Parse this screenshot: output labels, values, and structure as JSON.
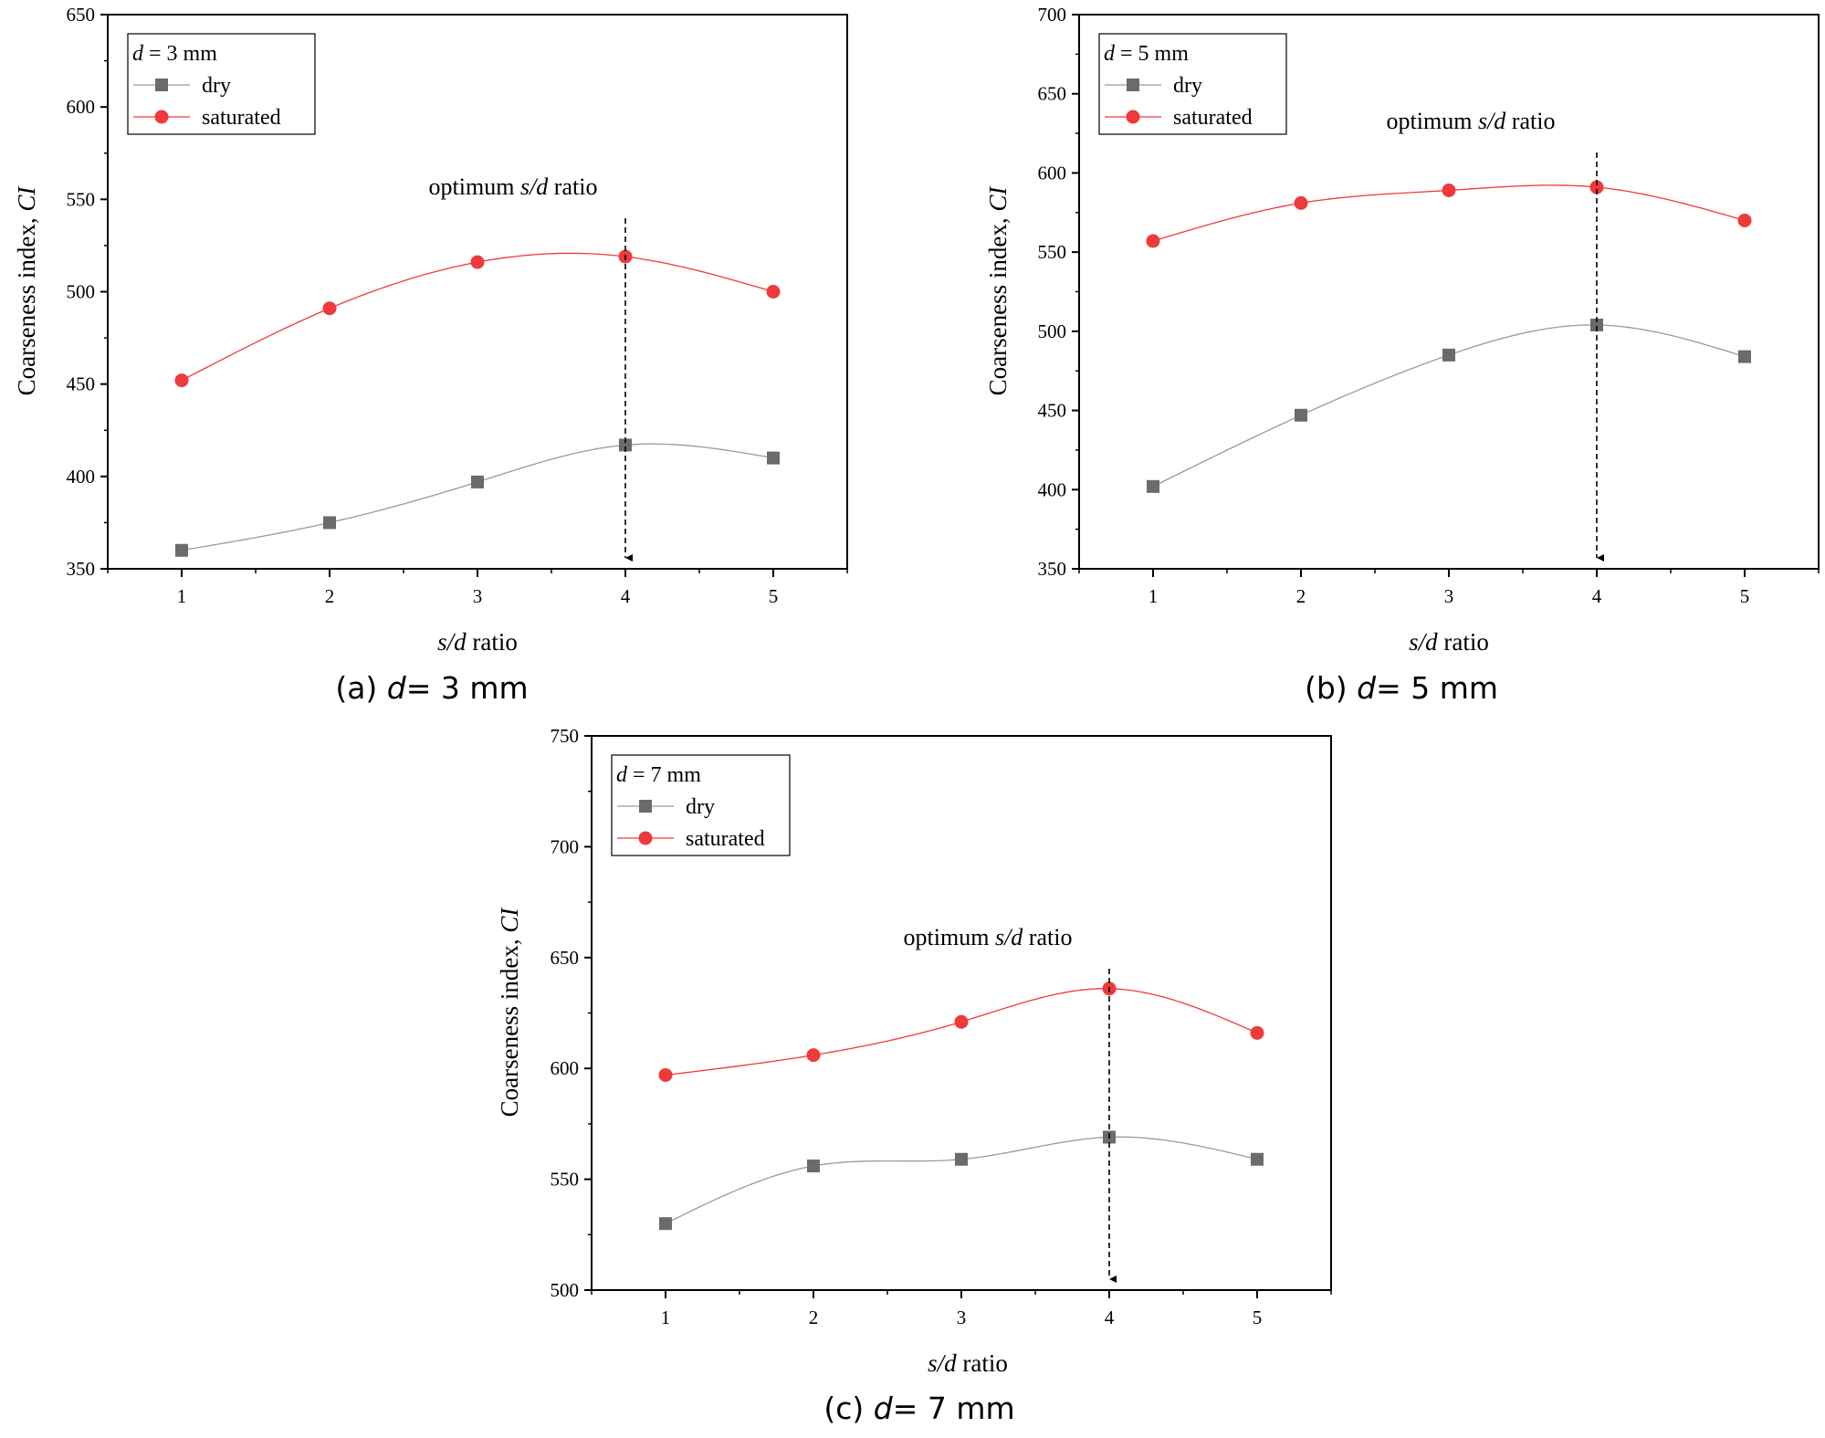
{
  "figure": {
    "panels": [
      {
        "id": "a",
        "caption": {
          "prefix": "(a) ",
          "var": "d",
          "rest": "= 3 mm"
        },
        "legend_title": {
          "var": "d",
          "rest": " = 3 mm"
        },
        "annotation": {
          "pre": "optimum ",
          "var": "s/d",
          "post": " ratio"
        },
        "arrow_x": 4,
        "xlabel": {
          "var": "s/d",
          "rest": " ratio"
        },
        "ylabel": {
          "text": "Coarseness index, ",
          "var": "CI"
        }
      },
      {
        "id": "b",
        "caption": {
          "prefix": "(b) ",
          "var": "d",
          "rest": "= 5 mm"
        },
        "legend_title": {
          "var": "d",
          "rest": " = 5 mm"
        },
        "annotation": {
          "pre": "optimum ",
          "var": "s/d",
          "post": " ratio"
        },
        "arrow_x": 4,
        "xlabel": {
          "var": "s/d",
          "rest": " ratio"
        },
        "ylabel": {
          "text": "Coarseness index, ",
          "var": "CI"
        }
      },
      {
        "id": "c",
        "caption": {
          "prefix": "(c) ",
          "var": "d",
          "rest": "= 7 mm"
        },
        "legend_title": {
          "var": "d",
          "rest": " = 7 mm"
        },
        "annotation": {
          "pre": "optimum ",
          "var": "s/d",
          "post": " ratio"
        },
        "arrow_x": 4,
        "xlabel": {
          "var": "s/d",
          "rest": " ratio"
        },
        "ylabel": {
          "text": "Coarseness index, ",
          "var": "CI"
        }
      }
    ],
    "colors": {
      "dry": "#6b6b6b",
      "dry_line": "#9a9a9a",
      "saturated": "#ee3a3a",
      "axis": "#000000"
    }
  },
  "chart_data": [
    {
      "type": "line",
      "x": [
        1,
        2,
        3,
        4,
        5
      ],
      "xlim": [
        0.5,
        5.5
      ],
      "xticks": [
        "1",
        "2",
        "3",
        "4",
        "5"
      ],
      "ylim": [
        350,
        650
      ],
      "yticks": [
        "350",
        "400",
        "450",
        "500",
        "550",
        "600",
        "650"
      ],
      "xlabel": "s/d ratio",
      "ylabel": "Coarseness index, CI",
      "legend_title": "d = 3 mm",
      "legend_position": "top-left",
      "series": [
        {
          "name": "dry",
          "marker": "square",
          "values": [
            360,
            375,
            397,
            417,
            410
          ]
        },
        {
          "name": "saturated",
          "marker": "circle",
          "values": [
            452,
            491,
            516,
            519,
            500
          ]
        }
      ],
      "annotations": [
        "optimum s/d ratio"
      ]
    },
    {
      "type": "line",
      "x": [
        1,
        2,
        3,
        4,
        5
      ],
      "xlim": [
        0.5,
        5.5
      ],
      "xticks": [
        "1",
        "2",
        "3",
        "4",
        "5"
      ],
      "ylim": [
        350,
        700
      ],
      "yticks": [
        "350",
        "400",
        "450",
        "500",
        "550",
        "600",
        "650",
        "700"
      ],
      "xlabel": "s/d ratio",
      "ylabel": "Coarseness index, CI",
      "legend_title": "d = 5 mm",
      "legend_position": "top-left",
      "series": [
        {
          "name": "dry",
          "marker": "square",
          "values": [
            402,
            447,
            485,
            504,
            484
          ]
        },
        {
          "name": "saturated",
          "marker": "circle",
          "values": [
            557,
            581,
            589,
            591,
            570
          ]
        }
      ],
      "annotations": [
        "optimum s/d ratio"
      ]
    },
    {
      "type": "line",
      "x": [
        1,
        2,
        3,
        4,
        5
      ],
      "xlim": [
        0.5,
        5.5
      ],
      "xticks": [
        "1",
        "2",
        "3",
        "4",
        "5"
      ],
      "ylim": [
        500,
        750
      ],
      "yticks": [
        "500",
        "550",
        "600",
        "650",
        "700",
        "750"
      ],
      "xlabel": "s/d ratio",
      "ylabel": "Coarseness index, CI",
      "legend_title": "d = 7 mm",
      "legend_position": "top-left",
      "series": [
        {
          "name": "dry",
          "marker": "square",
          "values": [
            530,
            556,
            559,
            569,
            559
          ]
        },
        {
          "name": "saturated",
          "marker": "circle",
          "values": [
            597,
            606,
            621,
            636,
            616
          ]
        }
      ],
      "annotations": [
        "optimum s/d ratio"
      ]
    }
  ]
}
